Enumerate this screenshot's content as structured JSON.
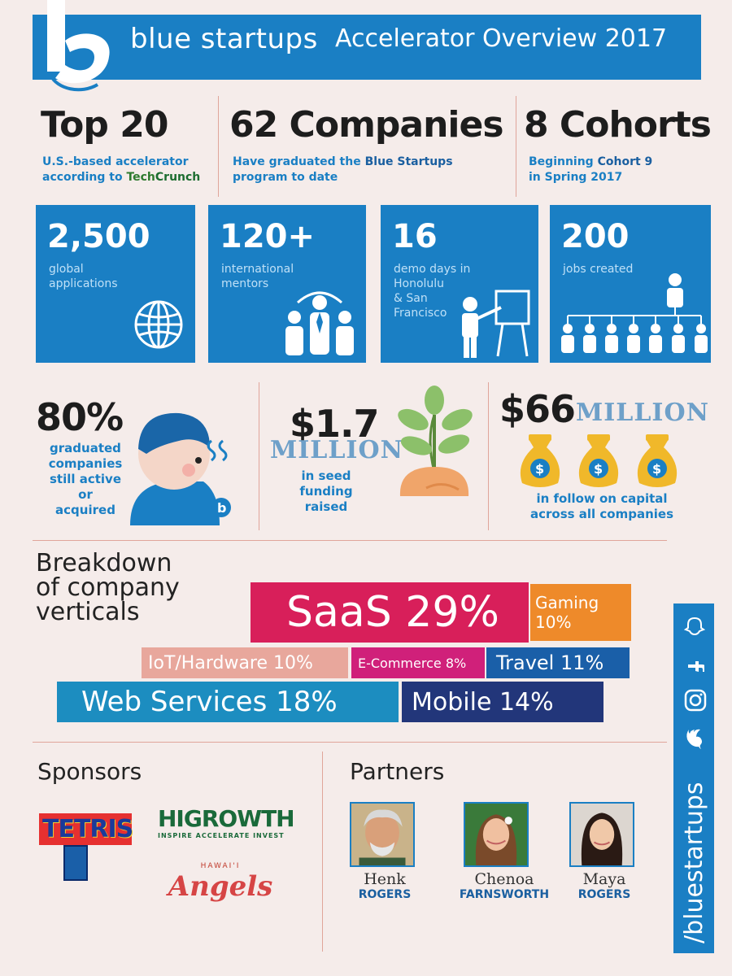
{
  "header": {
    "brand": "blue startups",
    "title": "Accelerator Overview 2017"
  },
  "top_stats": [
    {
      "big": "Top 20",
      "line1": "U.S.-based accelerator",
      "line2_pre": "according to ",
      "line2_tech": "Tech",
      "line2_crunch": "Crunch"
    },
    {
      "big": "62 Companies",
      "line1_pre": "Have graduated the ",
      "line1_bold": "Blue Startups",
      "line2": "program to date"
    },
    {
      "big": "8 Cohorts",
      "line1_pre": "Beginning ",
      "line1_bold": "Cohort 9",
      "line2": "in Spring 2017"
    }
  ],
  "tiles": [
    {
      "num": "2,500",
      "label1": "global",
      "label2": "applications",
      "label3": "",
      "label4": "",
      "icon": "globe-icon"
    },
    {
      "num": "120+",
      "label1": "international",
      "label2": "mentors",
      "label3": "",
      "label4": "",
      "icon": "mentors-icon"
    },
    {
      "num": "16",
      "label1": "demo days in",
      "label2": "Honolulu",
      "label3": "& San",
      "label4": "Francisco",
      "icon": "presenter-icon"
    },
    {
      "num": "200",
      "label1": "jobs created",
      "label2": "",
      "label3": "",
      "label4": "",
      "icon": "org-chart-icon"
    }
  ],
  "mid_stats": {
    "pct": {
      "big": "80%",
      "l1": "graduated",
      "l2": "companies",
      "l3": "still active or",
      "l4": "acquired"
    },
    "seed": {
      "big": "$1.7",
      "million": "MILLION",
      "l1": "in seed",
      "l2": "funding",
      "l3": "raised"
    },
    "follow": {
      "big": "$66",
      "million": "MILLION",
      "l1": "in follow on capital",
      "l2": "across all companies"
    }
  },
  "breakdown": {
    "title1": "Breakdown",
    "title2": "of company",
    "title3": "verticals",
    "bars": [
      {
        "label": "SaaS 29%",
        "pct": 29,
        "color": "#d81f5a"
      },
      {
        "label": "Gaming",
        "label2": "10%",
        "pct": 10,
        "color": "#ee8a2a"
      },
      {
        "label": "IoT/Hardware 10%",
        "pct": 10,
        "color": "#e8a79c"
      },
      {
        "label": "E-Commerce 8%",
        "pct": 8,
        "color": "#d0207a"
      },
      {
        "label": "Travel 11%",
        "pct": 11,
        "color": "#1a5fa8"
      },
      {
        "label": "Web Services 18%",
        "pct": 18,
        "color": "#1c8dc0"
      },
      {
        "label": "Mobile 14%",
        "pct": 14,
        "color": "#22367a"
      }
    ]
  },
  "sponsors": {
    "title": "Sponsors",
    "tetris": "TETRIS",
    "higrowth": "HIGROWTH",
    "higrowth_tag": "INSPIRE ACCELERATE INVEST",
    "hawaii": "HAWAI'I",
    "angels": "Angels"
  },
  "partners": {
    "title": "Partners",
    "people": [
      {
        "first": "Henk",
        "last": "ROGERS"
      },
      {
        "first": "Chenoa",
        "last": "FARNSWORTH"
      },
      {
        "first": "Maya",
        "last": "ROGERS"
      }
    ]
  },
  "social": {
    "handle": "/bluestartups"
  },
  "colors": {
    "brand_blue": "#1a7fc4",
    "background": "#f5ecea"
  }
}
